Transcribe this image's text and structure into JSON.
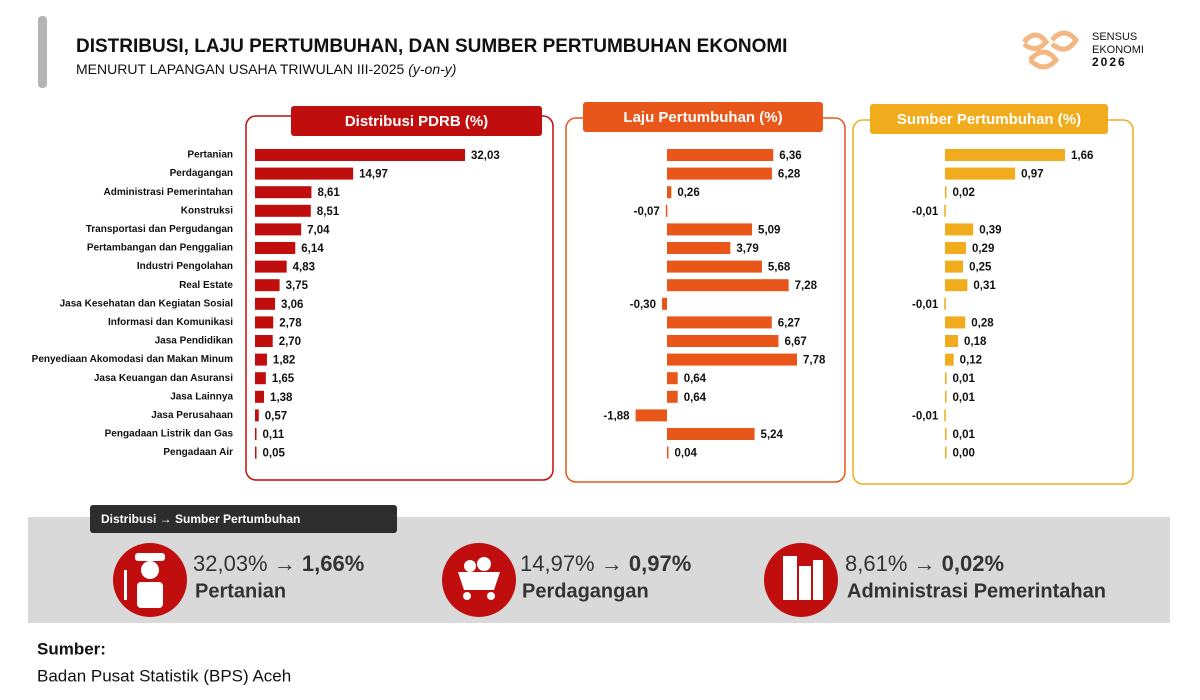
{
  "header": {
    "title": "DISTRIBUSI, LAJU PERTUMBUHAN, DAN SUMBER PERTUMBUHAN EKONOMI",
    "subtitle": "MENURUT LAPANGAN USAHA TRIWULAN III-2025",
    "subtitle_italic": "(y-on-y)"
  },
  "logo": {
    "line1": "SENSUS",
    "line2": "EKONOMI",
    "line3": "2026"
  },
  "chart_data": [
    {
      "type": "bar",
      "title": "Distribusi PDRB (%)",
      "color": "#c00d0d",
      "categories": [
        "Pertanian",
        "Perdagangan",
        "Administrasi Pemerintahan",
        "Konstruksi",
        "Transportasi dan Pergudangan",
        "Pertambangan dan Penggalian",
        "Industri Pengolahan",
        "Real Estate",
        "Jasa Kesehatan dan Kegiatan Sosial",
        "Informasi dan Komunikasi",
        "Jasa Pendidikan",
        "Penyediaan Akomodasi dan Makan Minum",
        "Jasa Keuangan dan Asuransi",
        "Jasa Lainnya",
        "Jasa Perusahaan",
        "Pengadaan Listrik dan Gas",
        "Pengadaan Air"
      ],
      "values": [
        32.03,
        14.97,
        8.61,
        8.51,
        7.04,
        6.14,
        4.83,
        3.75,
        3.06,
        2.78,
        2.7,
        1.82,
        1.65,
        1.38,
        0.57,
        0.11,
        0.05
      ],
      "value_labels": [
        "32,03",
        "14,97",
        "8,61",
        "8,51",
        "7,04",
        "6,14",
        "4,83",
        "3,75",
        "3,06",
        "2,78",
        "2,70",
        "1,82",
        "1,65",
        "1,38",
        "0,57",
        "0,11",
        "0,05"
      ]
    },
    {
      "type": "bar",
      "title": "Laju Pertumbuhan (%)",
      "color": "#e8561a",
      "values": [
        6.36,
        6.28,
        0.26,
        -0.07,
        5.09,
        3.79,
        5.68,
        7.28,
        -0.3,
        6.27,
        6.67,
        7.78,
        0.64,
        0.64,
        -1.88,
        5.24,
        0.04
      ],
      "value_labels": [
        "6,36",
        "6,28",
        "0,26",
        "-0,07",
        "5,09",
        "3,79",
        "5,68",
        "7,28",
        "-0,30",
        "6,27",
        "6,67",
        "7,78",
        "0,64",
        "0,64",
        "-1,88",
        "5,24",
        "0,04"
      ]
    },
    {
      "type": "bar",
      "title": "Sumber Pertumbuhan (%)",
      "color": "#f0ac1c",
      "values": [
        1.66,
        0.97,
        0.02,
        -0.01,
        0.39,
        0.29,
        0.25,
        0.31,
        -0.01,
        0.28,
        0.18,
        0.12,
        0.01,
        0.01,
        -0.01,
        0.01,
        0.0
      ],
      "value_labels": [
        "1,66",
        "0,97",
        "0,02",
        "-0,01",
        "0,39",
        "0,29",
        "0,25",
        "0,31",
        "-0,01",
        "0,28",
        "0,18",
        "0,12",
        "0,01",
        "0,01",
        "-0,01",
        "0,01",
        "0,00"
      ]
    }
  ],
  "highlights": {
    "badge": "Distribusi → Sumber Pertumbuhan",
    "arrow": "→",
    "items": [
      {
        "from": "32,03%",
        "to": "1,66%",
        "label": "Pertanian"
      },
      {
        "from": "14,97%",
        "to": "0,97%",
        "label": "Perdagangan"
      },
      {
        "from": "8,61%",
        "to": "0,02%",
        "label": "Administrasi Pemerintahan"
      }
    ]
  },
  "source": {
    "heading": "Sumber:",
    "text": "Badan Pusat Statistik (BPS) Aceh"
  }
}
